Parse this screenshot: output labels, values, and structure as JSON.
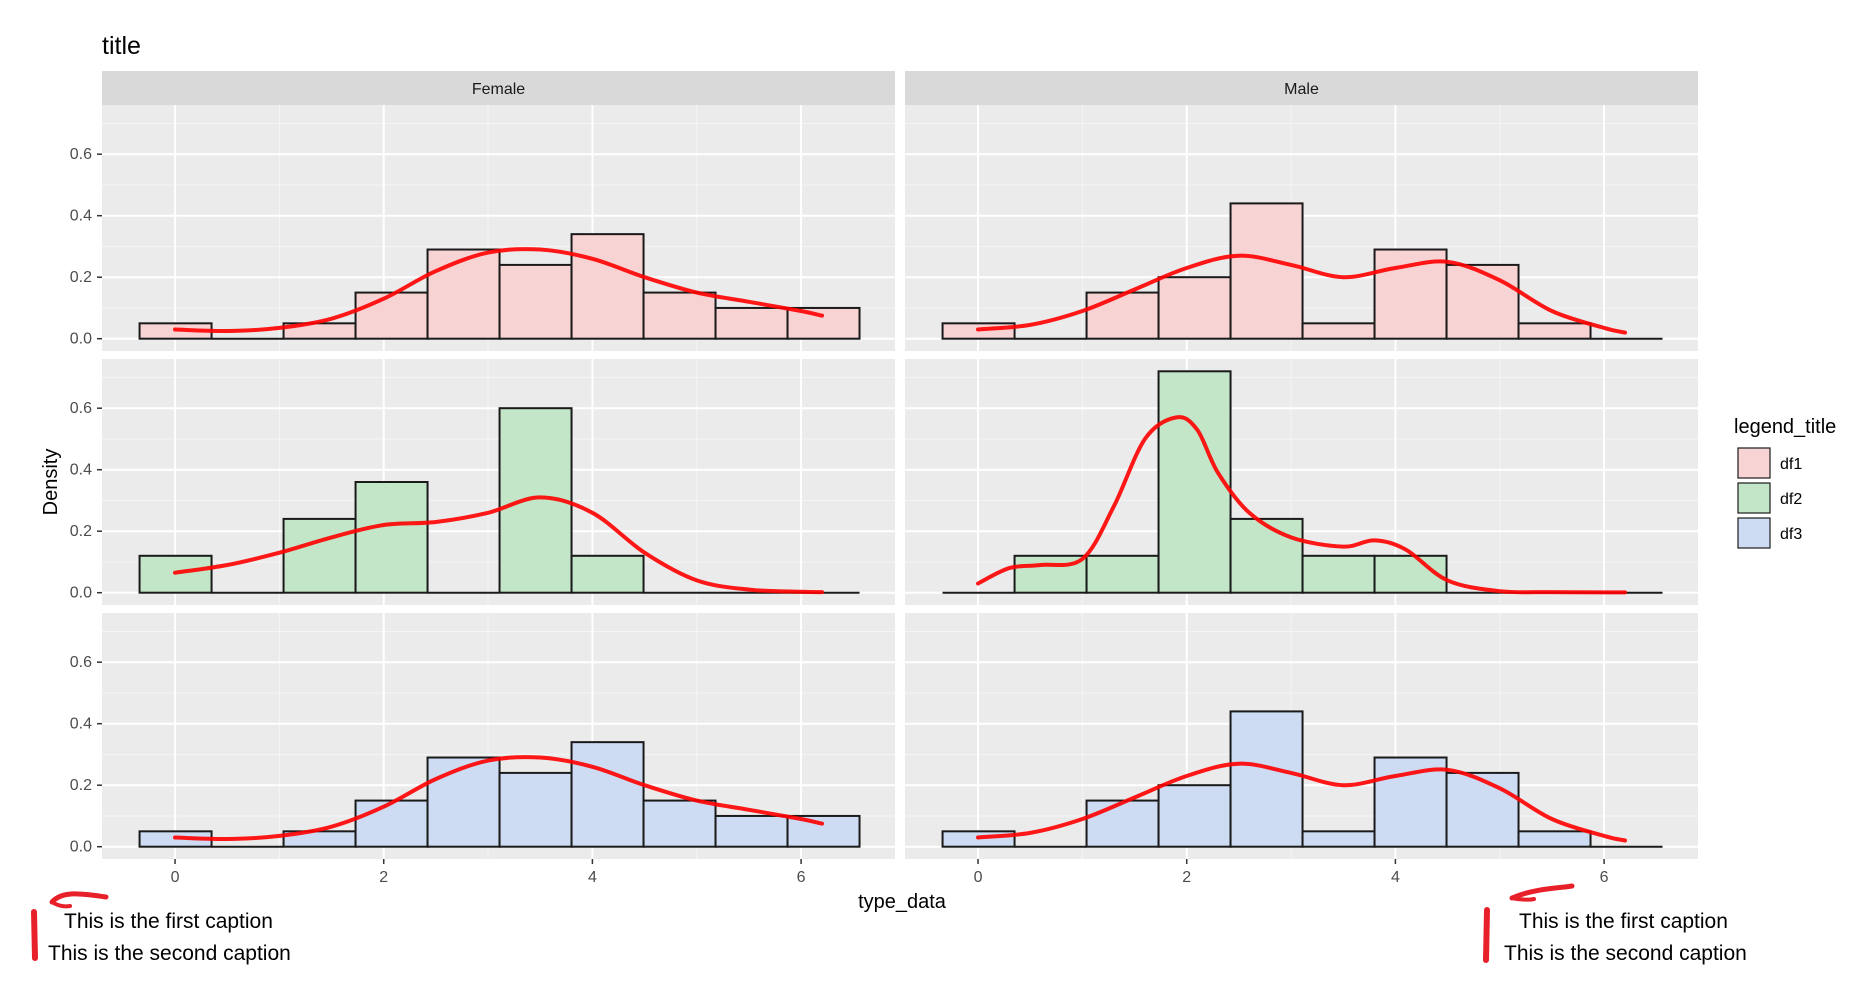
{
  "chart_data": {
    "type": "bar",
    "title": "title",
    "xlabel": "type_data",
    "ylabel": "Density",
    "xlim": [
      -0.7,
      6.9
    ],
    "ylim": [
      -0.04,
      0.76
    ],
    "x_ticks": [
      0,
      2,
      4,
      6
    ],
    "y_ticks": [
      0.0,
      0.2,
      0.4,
      0.6
    ],
    "x_tick_labels": [
      "0",
      "2",
      "4",
      "6"
    ],
    "y_tick_labels": [
      "0.0",
      "0.2",
      "0.4",
      "0.6"
    ],
    "grid": true,
    "columns": [
      "Female",
      "Male"
    ],
    "legend": {
      "title": "legend_title",
      "position": "right",
      "entries": [
        {
          "label": "df1",
          "color": "#F8D3D3"
        },
        {
          "label": "df2",
          "color": "#C3E6C8"
        },
        {
          "label": "df3",
          "color": "#CDDCF2"
        }
      ]
    },
    "bin_edges": [
      -0.34,
      0.35,
      1.04,
      1.73,
      2.42,
      3.11,
      3.8,
      4.49,
      5.18,
      5.87,
      6.56
    ],
    "density_color": "#FF0000",
    "panels": [
      {
        "row": 0,
        "column": 0,
        "series": "df1",
        "bar_values": [
          0.05,
          0,
          0.05,
          0.15,
          0.29,
          0.24,
          0.34,
          0.15,
          0.1,
          0.1
        ],
        "density_x": [
          0,
          0.5,
          1.0,
          1.5,
          2.0,
          2.5,
          3.0,
          3.5,
          4.0,
          4.5,
          5.0,
          5.5,
          6.0,
          6.2
        ],
        "density_y": [
          0.03,
          0.025,
          0.035,
          0.065,
          0.13,
          0.22,
          0.28,
          0.29,
          0.26,
          0.2,
          0.15,
          0.12,
          0.09,
          0.075
        ]
      },
      {
        "row": 0,
        "column": 1,
        "series": "df1",
        "bar_values": [
          0.05,
          0,
          0.15,
          0.2,
          0.44,
          0.05,
          0.29,
          0.24,
          0.05,
          0
        ],
        "density_x": [
          0,
          0.5,
          1.0,
          1.5,
          2.0,
          2.5,
          3.0,
          3.5,
          4.0,
          4.5,
          5.0,
          5.5,
          6.0,
          6.2
        ],
        "density_y": [
          0.03,
          0.045,
          0.09,
          0.16,
          0.23,
          0.27,
          0.24,
          0.2,
          0.23,
          0.25,
          0.19,
          0.09,
          0.035,
          0.02
        ]
      },
      {
        "row": 1,
        "column": 0,
        "series": "df2",
        "bar_values": [
          0.12,
          0,
          0.24,
          0.36,
          0,
          0.6,
          0.12,
          0,
          0,
          0
        ],
        "density_x": [
          0,
          0.5,
          1.0,
          1.5,
          2.0,
          2.5,
          3.0,
          3.5,
          4.0,
          4.5,
          5.0,
          5.5,
          6.0,
          6.2
        ],
        "density_y": [
          0.065,
          0.09,
          0.13,
          0.18,
          0.22,
          0.23,
          0.26,
          0.31,
          0.26,
          0.13,
          0.04,
          0.01,
          0.003,
          0.002
        ]
      },
      {
        "row": 1,
        "column": 1,
        "series": "df2",
        "bar_values": [
          0,
          0.12,
          0.12,
          0.72,
          0.24,
          0.12,
          0.12,
          0,
          0,
          0
        ],
        "density_x": [
          0,
          0.3,
          0.6,
          1.0,
          1.3,
          1.6,
          1.9,
          2.1,
          2.3,
          2.6,
          3.0,
          3.5,
          3.8,
          4.1,
          4.5,
          5.0,
          5.5,
          6.0,
          6.2
        ],
        "density_y": [
          0.03,
          0.08,
          0.09,
          0.11,
          0.28,
          0.5,
          0.57,
          0.53,
          0.39,
          0.26,
          0.18,
          0.15,
          0.17,
          0.14,
          0.04,
          0.005,
          0.002,
          0.001,
          0.001
        ]
      },
      {
        "row": 2,
        "column": 0,
        "series": "df3",
        "bar_values": [
          0.05,
          0,
          0.05,
          0.15,
          0.29,
          0.24,
          0.34,
          0.15,
          0.1,
          0.1
        ],
        "density_x": [
          0,
          0.5,
          1.0,
          1.5,
          2.0,
          2.5,
          3.0,
          3.5,
          4.0,
          4.5,
          5.0,
          5.5,
          6.0,
          6.2
        ],
        "density_y": [
          0.03,
          0.025,
          0.035,
          0.065,
          0.13,
          0.22,
          0.28,
          0.29,
          0.26,
          0.2,
          0.15,
          0.12,
          0.09,
          0.075
        ]
      },
      {
        "row": 2,
        "column": 1,
        "series": "df3",
        "bar_values": [
          0.05,
          0,
          0.15,
          0.2,
          0.44,
          0.05,
          0.29,
          0.24,
          0.05,
          0
        ],
        "density_x": [
          0,
          0.5,
          1.0,
          1.5,
          2.0,
          2.5,
          3.0,
          3.5,
          4.0,
          4.5,
          5.0,
          5.5,
          6.0,
          6.2
        ],
        "density_y": [
          0.03,
          0.045,
          0.09,
          0.16,
          0.23,
          0.27,
          0.24,
          0.2,
          0.23,
          0.25,
          0.19,
          0.09,
          0.035,
          0.02
        ]
      }
    ],
    "captions": [
      {
        "first": "This is the first caption",
        "second": "This is the second caption"
      },
      {
        "first": "This is the first caption",
        "second": "This is the second caption"
      }
    ],
    "annotation_color": "#E8202A"
  }
}
